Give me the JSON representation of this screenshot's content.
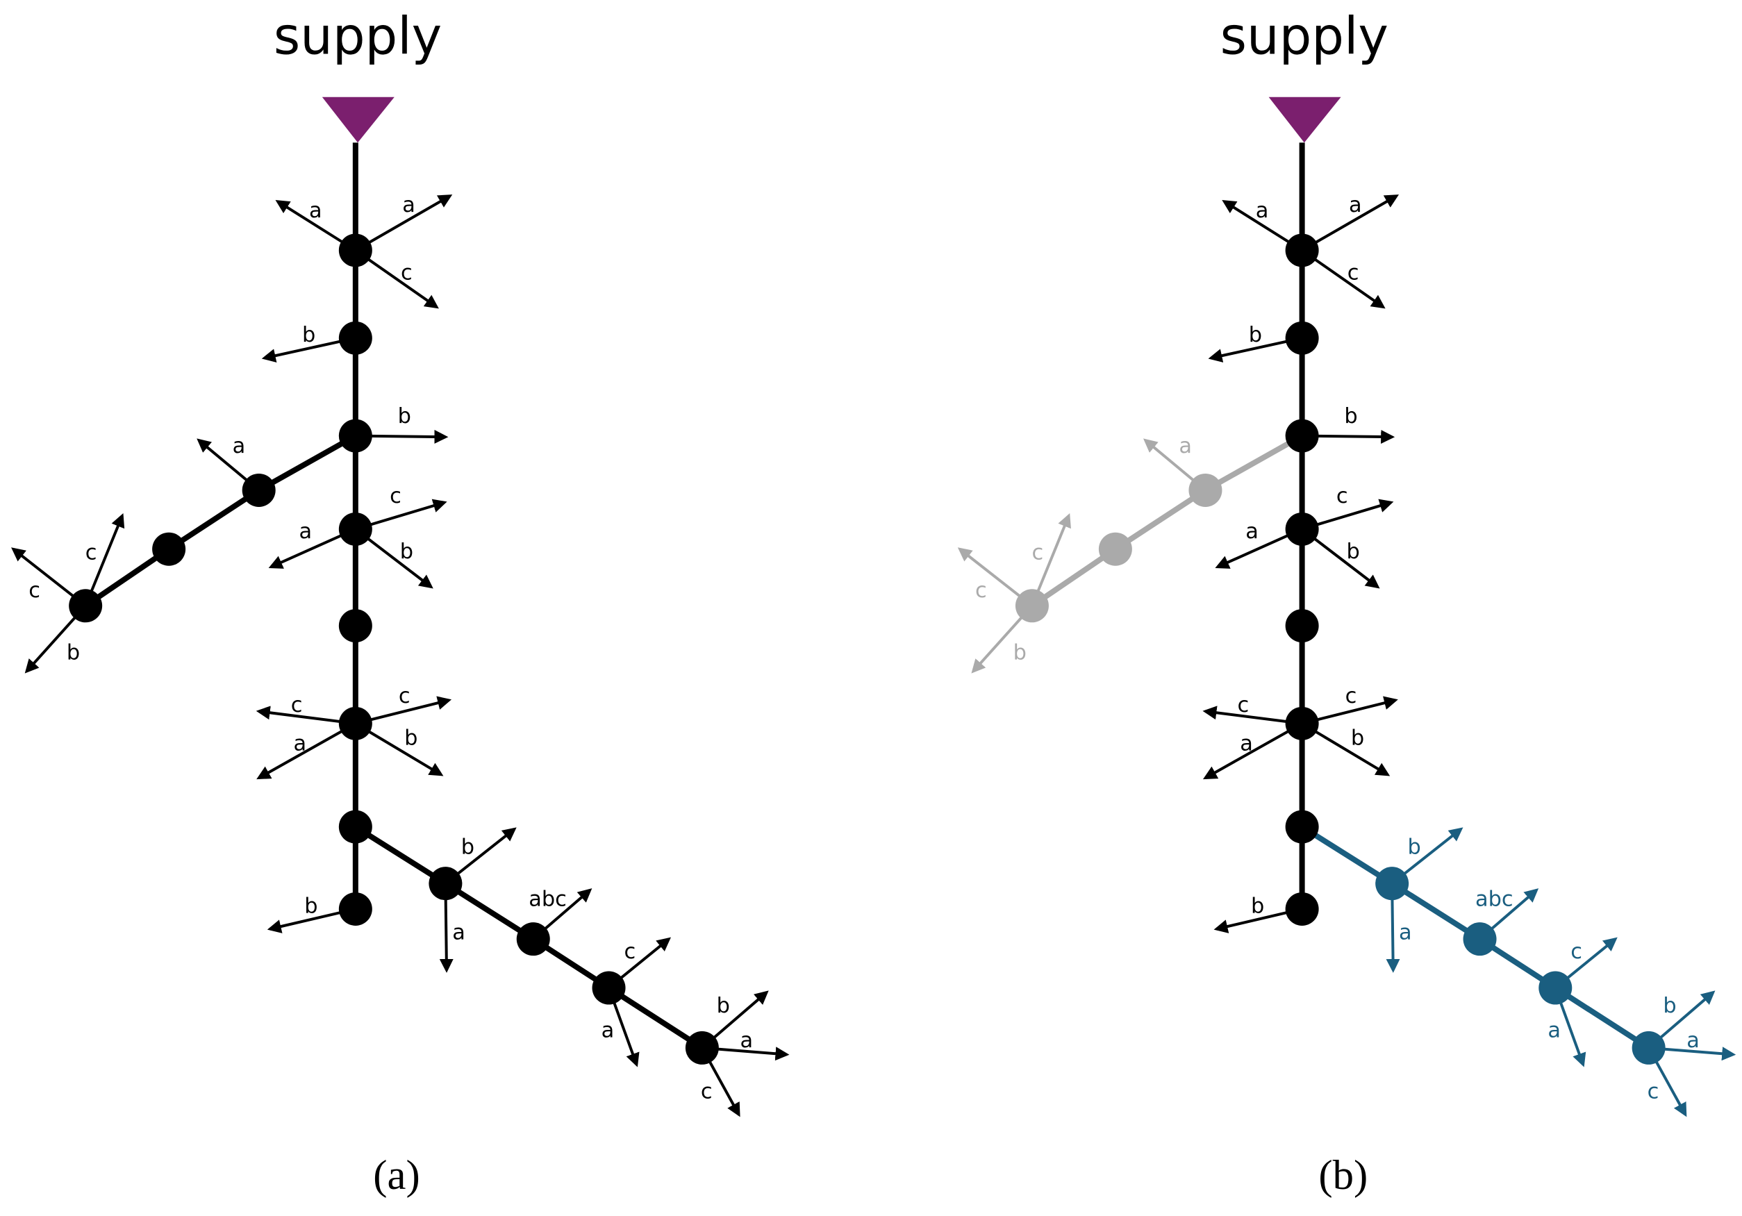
{
  "panels": [
    {
      "title": "supply",
      "caption": "(a)",
      "arrow_labels": [
        "a",
        "a",
        "c",
        "b",
        "b",
        "a",
        "c",
        "c",
        "b",
        "c",
        "a",
        "b",
        "c",
        "c",
        "a",
        "b",
        "b",
        "b",
        "a",
        "abc",
        "c",
        "a",
        "b",
        "a",
        "c"
      ]
    },
    {
      "title": "supply",
      "caption": "(b)",
      "arrow_labels": [
        "a",
        "a",
        "c",
        "b",
        "b",
        "a",
        "c",
        "c",
        "b",
        "c",
        "a",
        "b",
        "c",
        "c",
        "a",
        "b",
        "b",
        "b",
        "a",
        "abc",
        "c",
        "a",
        "b",
        "a",
        "c"
      ]
    }
  ]
}
